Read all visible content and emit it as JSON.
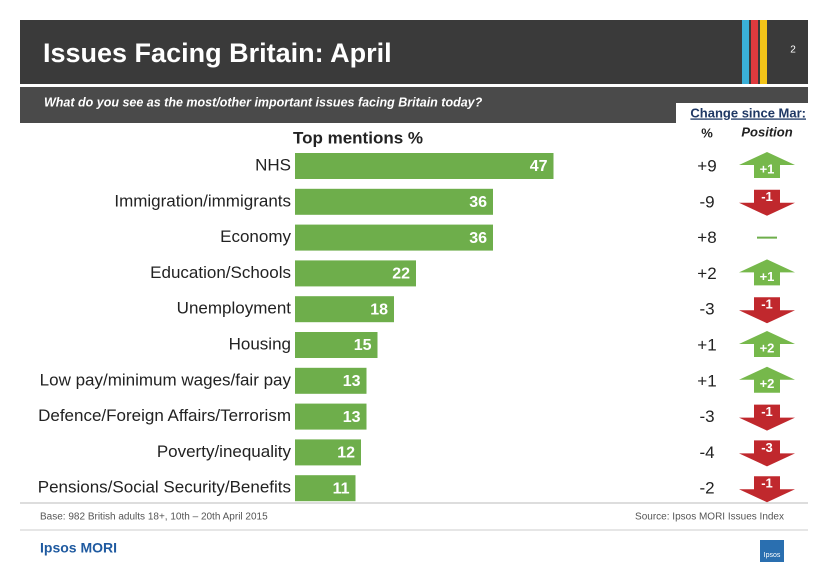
{
  "header": {
    "title": "Issues Facing Britain: April",
    "page": "2",
    "question": "What do you see as the most/other important issues facing Britain today?",
    "change_heading": "Change since Mar:",
    "change_col": "%",
    "position_col": "Position"
  },
  "chart_data": {
    "type": "bar",
    "title": "Top mentions %",
    "categories": [
      "NHS",
      "Immigration/immigrants",
      "Economy",
      "Education/Schools",
      "Unemployment",
      "Housing",
      "Low pay/minimum wages/fair pay",
      "Defence/Foreign Affairs/Terrorism",
      "Poverty/inequality",
      "Pensions/Social Security/Benefits"
    ],
    "values": [
      47,
      36,
      36,
      22,
      18,
      15,
      13,
      13,
      12,
      11
    ],
    "color": "#6eae4b",
    "change": [
      "+9",
      "-9",
      "+8",
      "+2",
      "-3",
      "+1",
      "+1",
      "-3",
      "-4",
      "-2"
    ],
    "position": [
      "+1",
      "-1",
      null,
      "+1",
      "-1",
      "+2",
      "+2",
      "-1",
      "-3",
      "-1"
    ]
  },
  "footer": {
    "base": "Base: 982 British adults 18+, 10th – 20th April 2015",
    "source": "Source: Ipsos MORI Issues Index",
    "brand": "Ipsos MORI",
    "logo": "Ipsos"
  }
}
